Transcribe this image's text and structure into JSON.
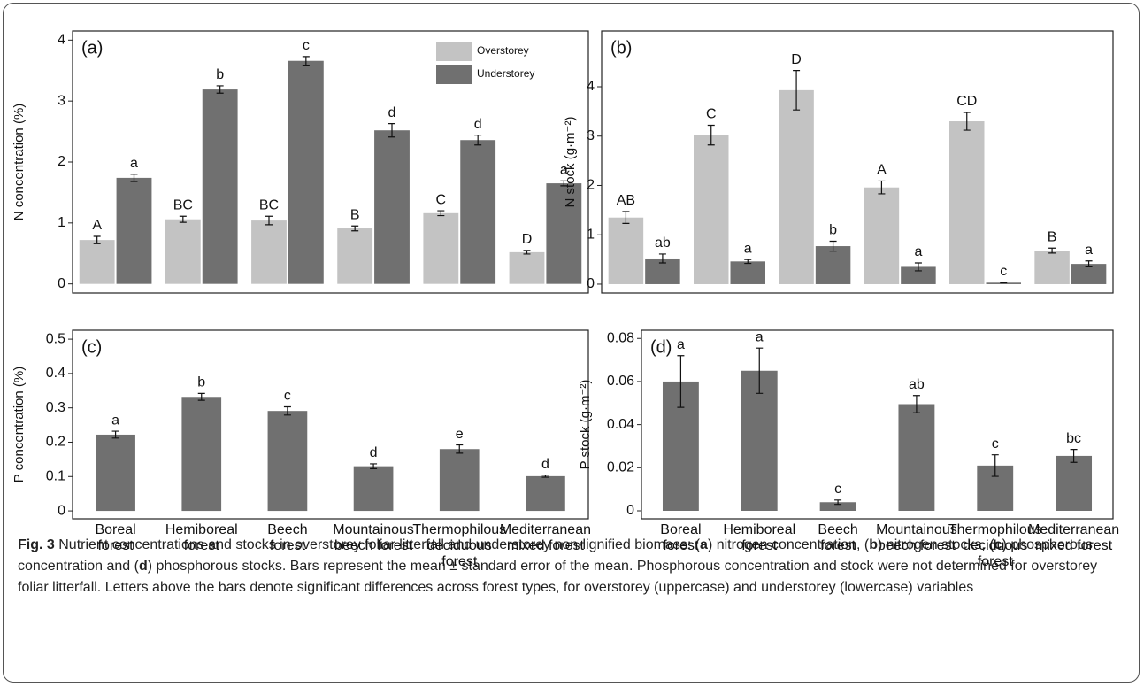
{
  "chart_data": [
    {
      "type": "bar",
      "panel_label": "(a)",
      "ylabel": "N concentration (%)",
      "ylim": [
        -0.15,
        4.15
      ],
      "yticks": [
        0,
        1,
        2,
        3,
        4
      ],
      "legend": "top-right",
      "series": [
        {
          "name": "Overstorey",
          "color": "#c3c3c3",
          "values": [
            0.72,
            1.06,
            1.04,
            0.91,
            1.16,
            0.52
          ],
          "errors": [
            0.06,
            0.05,
            0.07,
            0.04,
            0.04,
            0.03
          ],
          "letters": [
            "A",
            "BC",
            "BC",
            "B",
            "C",
            "D"
          ]
        },
        {
          "name": "Understorey",
          "color": "#707070",
          "values": [
            1.74,
            3.19,
            3.66,
            2.52,
            2.36,
            1.65
          ],
          "errors": [
            0.06,
            0.06,
            0.07,
            0.11,
            0.08,
            0.04
          ],
          "letters": [
            "a",
            "b",
            "c",
            "d",
            "d",
            "a"
          ]
        }
      ]
    },
    {
      "type": "bar",
      "panel_label": "(b)",
      "ylabel": "N stock (g·m⁻²)",
      "ylim": [
        -0.18,
        5.13
      ],
      "yticks": [
        0,
        1,
        2,
        3,
        4
      ],
      "series": [
        {
          "color": "#c3c3c3",
          "values": [
            1.35,
            3.02,
            3.93,
            1.96,
            3.3,
            0.68
          ],
          "errors": [
            0.12,
            0.2,
            0.4,
            0.13,
            0.18,
            0.05
          ],
          "letters": [
            "AB",
            "C",
            "D",
            "A",
            "CD",
            "B"
          ]
        },
        {
          "color": "#707070",
          "values": [
            0.52,
            0.46,
            0.77,
            0.35,
            0.03,
            0.41
          ],
          "errors": [
            0.09,
            0.04,
            0.1,
            0.08,
            0.005,
            0.06
          ],
          "letters": [
            "ab",
            "a",
            "b",
            "a",
            "c",
            "a"
          ]
        }
      ]
    },
    {
      "type": "bar",
      "panel_label": "(c)",
      "ylabel": "P concentration (%)",
      "ylim": [
        -0.023,
        0.526
      ],
      "yticks": [
        0,
        0.1,
        0.2,
        0.3,
        0.4,
        0.5
      ],
      "categories": [
        "Boreal forest",
        "Hemiboreal forest",
        "Beech forest",
        "Mountainous beech forest",
        "Thermophilous deciduous forest",
        "Mediterranean mixed forest"
      ],
      "series": [
        {
          "color": "#707070",
          "values": [
            0.222,
            0.332,
            0.291,
            0.13,
            0.18,
            0.101
          ],
          "errors": [
            0.01,
            0.01,
            0.012,
            0.007,
            0.012,
            0.003
          ],
          "letters": [
            "a",
            "b",
            "c",
            "d",
            "e",
            "d"
          ]
        }
      ]
    },
    {
      "type": "bar",
      "panel_label": "(d)",
      "ylabel": "P stock (g·m⁻²)",
      "ylim": [
        -0.0037,
        0.0838
      ],
      "yticks": [
        0,
        0.02,
        0.04,
        0.06,
        0.08
      ],
      "categories": [
        "Boreal forest",
        "Hemiboreal forest",
        "Beech forest",
        "Mountainous beech forest",
        "Thermophilous deciduous forest",
        "Mediterranean mixed forest"
      ],
      "series": [
        {
          "color": "#707070",
          "values": [
            0.06,
            0.065,
            0.004,
            0.0495,
            0.021,
            0.0255
          ],
          "errors": [
            0.012,
            0.0105,
            0.001,
            0.004,
            0.005,
            0.003
          ],
          "letters": [
            "a",
            "a",
            "c",
            "ab",
            "c",
            "bc"
          ]
        }
      ]
    }
  ],
  "caption": {
    "label": "Fig. 3",
    "segments": [
      "Nutrient concentrations and stocks in overstorey foliar litterfall and understorey non-lignified biomass: (",
      "a",
      ") nitrogen concentration, (",
      "b",
      ") nitrogen stocks, (",
      "c",
      ") phosphorous concentration and (",
      "d",
      ") phosphorous stocks. Bars represent the mean ± standard error of the mean. Phosphorous concentration and stock were not determined for overstorey foliar litterfall. Letters above the bars denote significant differences across forest types, for overstorey (uppercase) and understorey (lowercase) variables"
    ]
  }
}
